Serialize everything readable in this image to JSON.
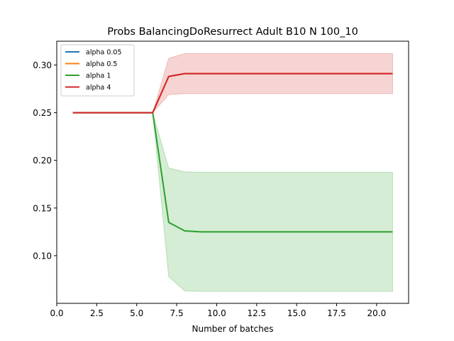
{
  "chart_data": {
    "type": "line",
    "title": "Probs BalancingDoResurrect Adult B10 N 100_10",
    "xlabel": "Number of batches",
    "ylabel": "",
    "xlim": [
      0.0,
      22.0
    ],
    "ylim": [
      0.05,
      0.325
    ],
    "xticks": [
      0.0,
      2.5,
      5.0,
      7.5,
      10.0,
      12.5,
      15.0,
      17.5,
      20.0
    ],
    "xtick_labels": [
      "0.0",
      "2.5",
      "5.0",
      "7.5",
      "10.0",
      "12.5",
      "15.0",
      "17.5",
      "20.0"
    ],
    "yticks": [
      0.1,
      0.15,
      0.2,
      0.25,
      0.3
    ],
    "ytick_labels": [
      "0.10",
      "0.15",
      "0.20",
      "0.25",
      "0.30"
    ],
    "grid": false,
    "legend_position": "top-left",
    "x": [
      1,
      2,
      3,
      4,
      5,
      6,
      7,
      8,
      9,
      10,
      11,
      12,
      13,
      14,
      15,
      16,
      17,
      18,
      19,
      20,
      21
    ],
    "series": [
      {
        "name": "alpha 0.05",
        "color": "#1f77b4",
        "values": [
          0.25,
          0.25,
          0.25,
          0.25,
          0.25,
          0.25,
          0.288,
          0.291,
          0.291,
          0.291,
          0.291,
          0.291,
          0.291,
          0.291,
          0.291,
          0.291,
          0.291,
          0.291,
          0.291,
          0.291,
          0.291
        ]
      },
      {
        "name": "alpha 0.5",
        "color": "#ff7f0e",
        "values": [
          0.25,
          0.25,
          0.25,
          0.25,
          0.25,
          0.25,
          0.288,
          0.291,
          0.291,
          0.291,
          0.291,
          0.291,
          0.291,
          0.291,
          0.291,
          0.291,
          0.291,
          0.291,
          0.291,
          0.291,
          0.291
        ]
      },
      {
        "name": "alpha 1",
        "color": "#2ca02c",
        "values": [
          0.25,
          0.25,
          0.25,
          0.25,
          0.25,
          0.25,
          0.135,
          0.126,
          0.125,
          0.125,
          0.125,
          0.125,
          0.125,
          0.125,
          0.125,
          0.125,
          0.125,
          0.125,
          0.125,
          0.125,
          0.125
        ],
        "band_lower": [
          0.25,
          0.25,
          0.25,
          0.25,
          0.25,
          0.25,
          0.078,
          0.063,
          0.0625,
          0.0625,
          0.0625,
          0.0625,
          0.0625,
          0.0625,
          0.0625,
          0.0625,
          0.0625,
          0.0625,
          0.0625,
          0.0625,
          0.0625
        ],
        "band_upper": [
          0.25,
          0.25,
          0.25,
          0.25,
          0.25,
          0.25,
          0.192,
          0.188,
          0.1875,
          0.1875,
          0.1875,
          0.1875,
          0.1875,
          0.1875,
          0.1875,
          0.1875,
          0.1875,
          0.1875,
          0.1875,
          0.1875,
          0.1875
        ]
      },
      {
        "name": "alpha 4",
        "color": "#d62728",
        "values": [
          0.25,
          0.25,
          0.25,
          0.25,
          0.25,
          0.25,
          0.288,
          0.291,
          0.291,
          0.291,
          0.291,
          0.291,
          0.291,
          0.291,
          0.291,
          0.291,
          0.291,
          0.291,
          0.291,
          0.291,
          0.291
        ],
        "band_lower": [
          0.25,
          0.25,
          0.25,
          0.25,
          0.25,
          0.25,
          0.269,
          0.27,
          0.27,
          0.27,
          0.27,
          0.27,
          0.27,
          0.27,
          0.27,
          0.27,
          0.27,
          0.27,
          0.27,
          0.27,
          0.27
        ],
        "band_upper": [
          0.25,
          0.25,
          0.25,
          0.25,
          0.25,
          0.25,
          0.307,
          0.312,
          0.312,
          0.312,
          0.312,
          0.312,
          0.312,
          0.312,
          0.312,
          0.312,
          0.312,
          0.312,
          0.312,
          0.312,
          0.312
        ]
      }
    ]
  }
}
